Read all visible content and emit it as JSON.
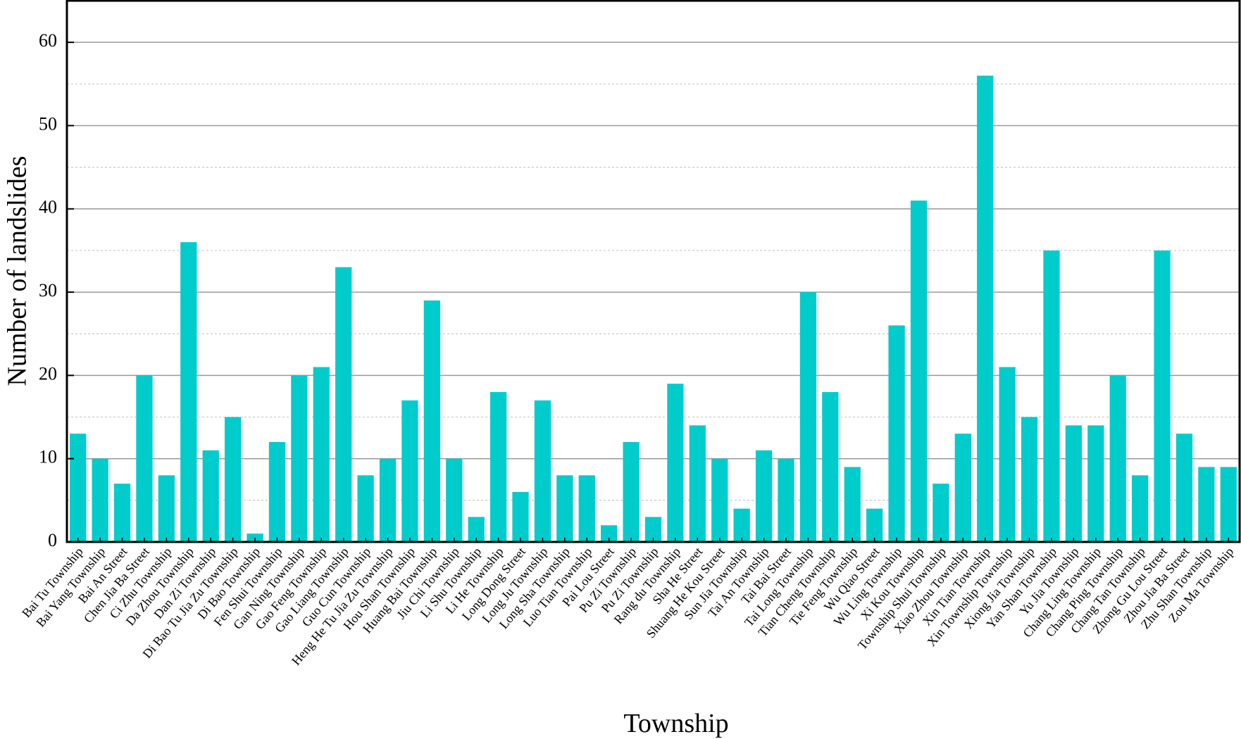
{
  "chart_data": {
    "type": "bar",
    "title": "",
    "xlabel": "Township",
    "ylabel": "Number of landslides",
    "ylim": [
      0,
      65
    ],
    "yticks": [
      0,
      10,
      20,
      30,
      40,
      50,
      60
    ],
    "minor_gridlines": [
      5,
      15,
      25,
      35,
      45,
      55
    ],
    "grid": true,
    "bar_color": "#00CCCC",
    "categories": [
      "Bai Tu Township",
      "Bai Yang Township",
      "Bai An Street",
      "Chen Jia Ba Street",
      "Ci Zhu Township",
      "Da Zhou Township",
      "Dan Zi Township",
      "Di Bao Tu Jia Zu Township",
      "Di Bao Township",
      "Fen Shui Township",
      "Gan Ning Township",
      "Gao Feng Township",
      "Gao Liang Township",
      "Guo Cun Township",
      "Heng He Tu Jia Zu Township",
      "Hou Shan Township",
      "Huang Bai Township",
      "Jiu Chi Township",
      "Li Shu Township",
      "Li He Township",
      "Long Dong Street",
      "Long Ju Township",
      "Long Sha Township",
      "Luo Tian Township",
      "Pai Lou Street",
      "Pu Zi Township",
      "Pu Zi Township",
      "Rang du Township",
      "Sha He Street",
      "Shuang He Kou Street",
      "Sun Jia Township",
      "Tai An Township",
      "Tai Bai Street",
      "Tai Long Township",
      "Tian Cheng Township",
      "Tie Feng Township",
      "Wu Qiao Street",
      "Wu Ling Township",
      "Xi Kou Township",
      "Township Shui Township",
      "Xiao Zhou Township",
      "Xin Tian Township",
      "Xin Township Township",
      "Xiong Jia Township",
      "Yan Shan Township",
      "Yu Jia Township",
      "Chang Ling Township",
      "Chang Ping Township",
      "Chang Tan Township",
      "Zhong Gu Lou Street",
      "Zhou Jia Ba Street",
      "Zhu Shan Township",
      "Zou Ma Township"
    ],
    "values": [
      13,
      10,
      7,
      20,
      8,
      36,
      11,
      15,
      1,
      12,
      20,
      21,
      33,
      8,
      10,
      17,
      29,
      10,
      3,
      18,
      6,
      17,
      8,
      8,
      2,
      12,
      3,
      19,
      14,
      10,
      4,
      11,
      10,
      30,
      18,
      9,
      4,
      26,
      41,
      7,
      13,
      56,
      21,
      15,
      35,
      14,
      14,
      20,
      8,
      35,
      13,
      9,
      9
    ]
  }
}
